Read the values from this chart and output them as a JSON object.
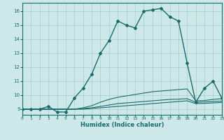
{
  "xlabel": "Humidex (Indice chaleur)",
  "background_color": "#cce8e8",
  "grid_color": "#aacccc",
  "line_color": "#1a6b6b",
  "xlim": [
    0,
    23
  ],
  "ylim": [
    8.6,
    16.6
  ],
  "xticks": [
    0,
    1,
    2,
    3,
    4,
    5,
    6,
    7,
    8,
    9,
    10,
    11,
    12,
    13,
    14,
    15,
    16,
    17,
    18,
    19,
    20,
    21,
    22,
    23
  ],
  "yticks": [
    9,
    10,
    11,
    12,
    13,
    14,
    15,
    16
  ],
  "main_x": [
    0,
    1,
    2,
    3,
    4,
    5,
    6,
    7,
    8,
    9,
    10,
    11,
    12,
    13,
    14,
    15,
    16,
    17,
    18,
    19,
    20,
    21,
    22,
    23
  ],
  "main_y": [
    9.0,
    9.0,
    9.0,
    9.2,
    8.8,
    8.8,
    9.8,
    10.5,
    11.5,
    13.0,
    13.9,
    15.3,
    15.0,
    14.8,
    16.0,
    16.1,
    16.2,
    15.6,
    15.3,
    12.3,
    9.5,
    10.5,
    11.0,
    9.8
  ],
  "line2_x": [
    0,
    1,
    2,
    3,
    4,
    5,
    6,
    7,
    8,
    9,
    10,
    11,
    12,
    13,
    14,
    15,
    16,
    17,
    18,
    19,
    20,
    21,
    22,
    23
  ],
  "line2_y": [
    9.0,
    9.0,
    9.0,
    9.0,
    9.0,
    9.0,
    9.0,
    9.1,
    9.25,
    9.5,
    9.7,
    9.85,
    9.95,
    10.05,
    10.15,
    10.25,
    10.3,
    10.35,
    10.4,
    10.45,
    9.6,
    9.62,
    9.7,
    9.75
  ],
  "line3_x": [
    0,
    1,
    2,
    3,
    4,
    5,
    6,
    7,
    8,
    9,
    10,
    11,
    12,
    13,
    14,
    15,
    16,
    17,
    18,
    19,
    20,
    21,
    22,
    23
  ],
  "line3_y": [
    9.0,
    9.0,
    9.0,
    9.0,
    9.0,
    9.0,
    9.0,
    9.05,
    9.1,
    9.2,
    9.3,
    9.4,
    9.45,
    9.5,
    9.55,
    9.6,
    9.65,
    9.7,
    9.72,
    9.75,
    9.5,
    9.52,
    9.55,
    9.58
  ],
  "line4_x": [
    0,
    1,
    2,
    3,
    4,
    5,
    6,
    7,
    8,
    9,
    10,
    11,
    12,
    13,
    14,
    15,
    16,
    17,
    18,
    19,
    20,
    21,
    22,
    23
  ],
  "line4_y": [
    9.0,
    9.0,
    9.0,
    9.0,
    9.0,
    9.0,
    9.0,
    9.0,
    9.05,
    9.1,
    9.15,
    9.2,
    9.25,
    9.3,
    9.35,
    9.4,
    9.45,
    9.5,
    9.55,
    9.6,
    9.4,
    9.42,
    9.45,
    9.48
  ]
}
